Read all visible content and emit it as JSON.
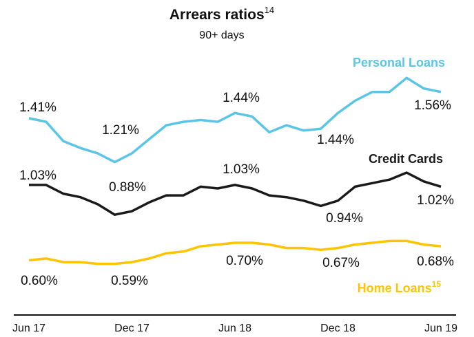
{
  "chart_data": {
    "type": "line",
    "title": "Arrears ratios",
    "title_note": "14",
    "subtitle": "90+ days",
    "categories": [
      "Jun 17",
      null,
      null,
      null,
      null,
      null,
      "Dec 17",
      null,
      null,
      null,
      null,
      null,
      "Jun 18",
      null,
      null,
      null,
      null,
      null,
      "Dec 18",
      null,
      null,
      null,
      null,
      null,
      "Jun 19"
    ],
    "ylim": [
      0.3,
      1.7
    ],
    "series": [
      {
        "name": "Personal Loans",
        "color": "#5bc5e6",
        "values": [
          1.41,
          1.39,
          1.28,
          1.24,
          1.21,
          1.16,
          1.21,
          1.29,
          1.37,
          1.39,
          1.4,
          1.39,
          1.44,
          1.42,
          1.33,
          1.37,
          1.34,
          1.35,
          1.44,
          1.51,
          1.56,
          1.56,
          1.64,
          1.58,
          1.56
        ],
        "value_labels": [
          "1.41%",
          null,
          null,
          null,
          null,
          null,
          "1.21%",
          null,
          null,
          null,
          null,
          null,
          "1.44%",
          null,
          null,
          null,
          null,
          null,
          "1.44%",
          null,
          null,
          null,
          null,
          null,
          "1.56%"
        ]
      },
      {
        "name": "Credit Cards",
        "color": "#1a1a1a",
        "values": [
          1.03,
          1.03,
          0.98,
          0.96,
          0.92,
          0.86,
          0.88,
          0.93,
          0.97,
          0.97,
          1.02,
          1.01,
          1.03,
          1.01,
          0.97,
          0.96,
          0.94,
          0.91,
          0.94,
          1.02,
          1.04,
          1.06,
          1.1,
          1.05,
          1.02
        ],
        "value_labels": [
          "1.03%",
          null,
          null,
          null,
          null,
          null,
          "0.88%",
          null,
          null,
          null,
          null,
          null,
          "1.03%",
          null,
          null,
          null,
          null,
          null,
          "0.94%",
          null,
          null,
          null,
          null,
          null,
          "1.02%"
        ]
      },
      {
        "name": "Home Loans",
        "note": "15",
        "color": "#fdc500",
        "values": [
          0.6,
          0.61,
          0.59,
          0.59,
          0.58,
          0.58,
          0.59,
          0.61,
          0.64,
          0.65,
          0.68,
          0.69,
          0.7,
          0.7,
          0.69,
          0.67,
          0.67,
          0.66,
          0.67,
          0.69,
          0.7,
          0.71,
          0.71,
          0.69,
          0.68
        ],
        "value_labels": [
          "0.60%",
          null,
          null,
          null,
          null,
          null,
          "0.59%",
          null,
          null,
          null,
          null,
          null,
          "0.70%",
          null,
          null,
          null,
          null,
          null,
          "0.67%",
          null,
          null,
          null,
          null,
          null,
          "0.68%"
        ]
      }
    ]
  }
}
